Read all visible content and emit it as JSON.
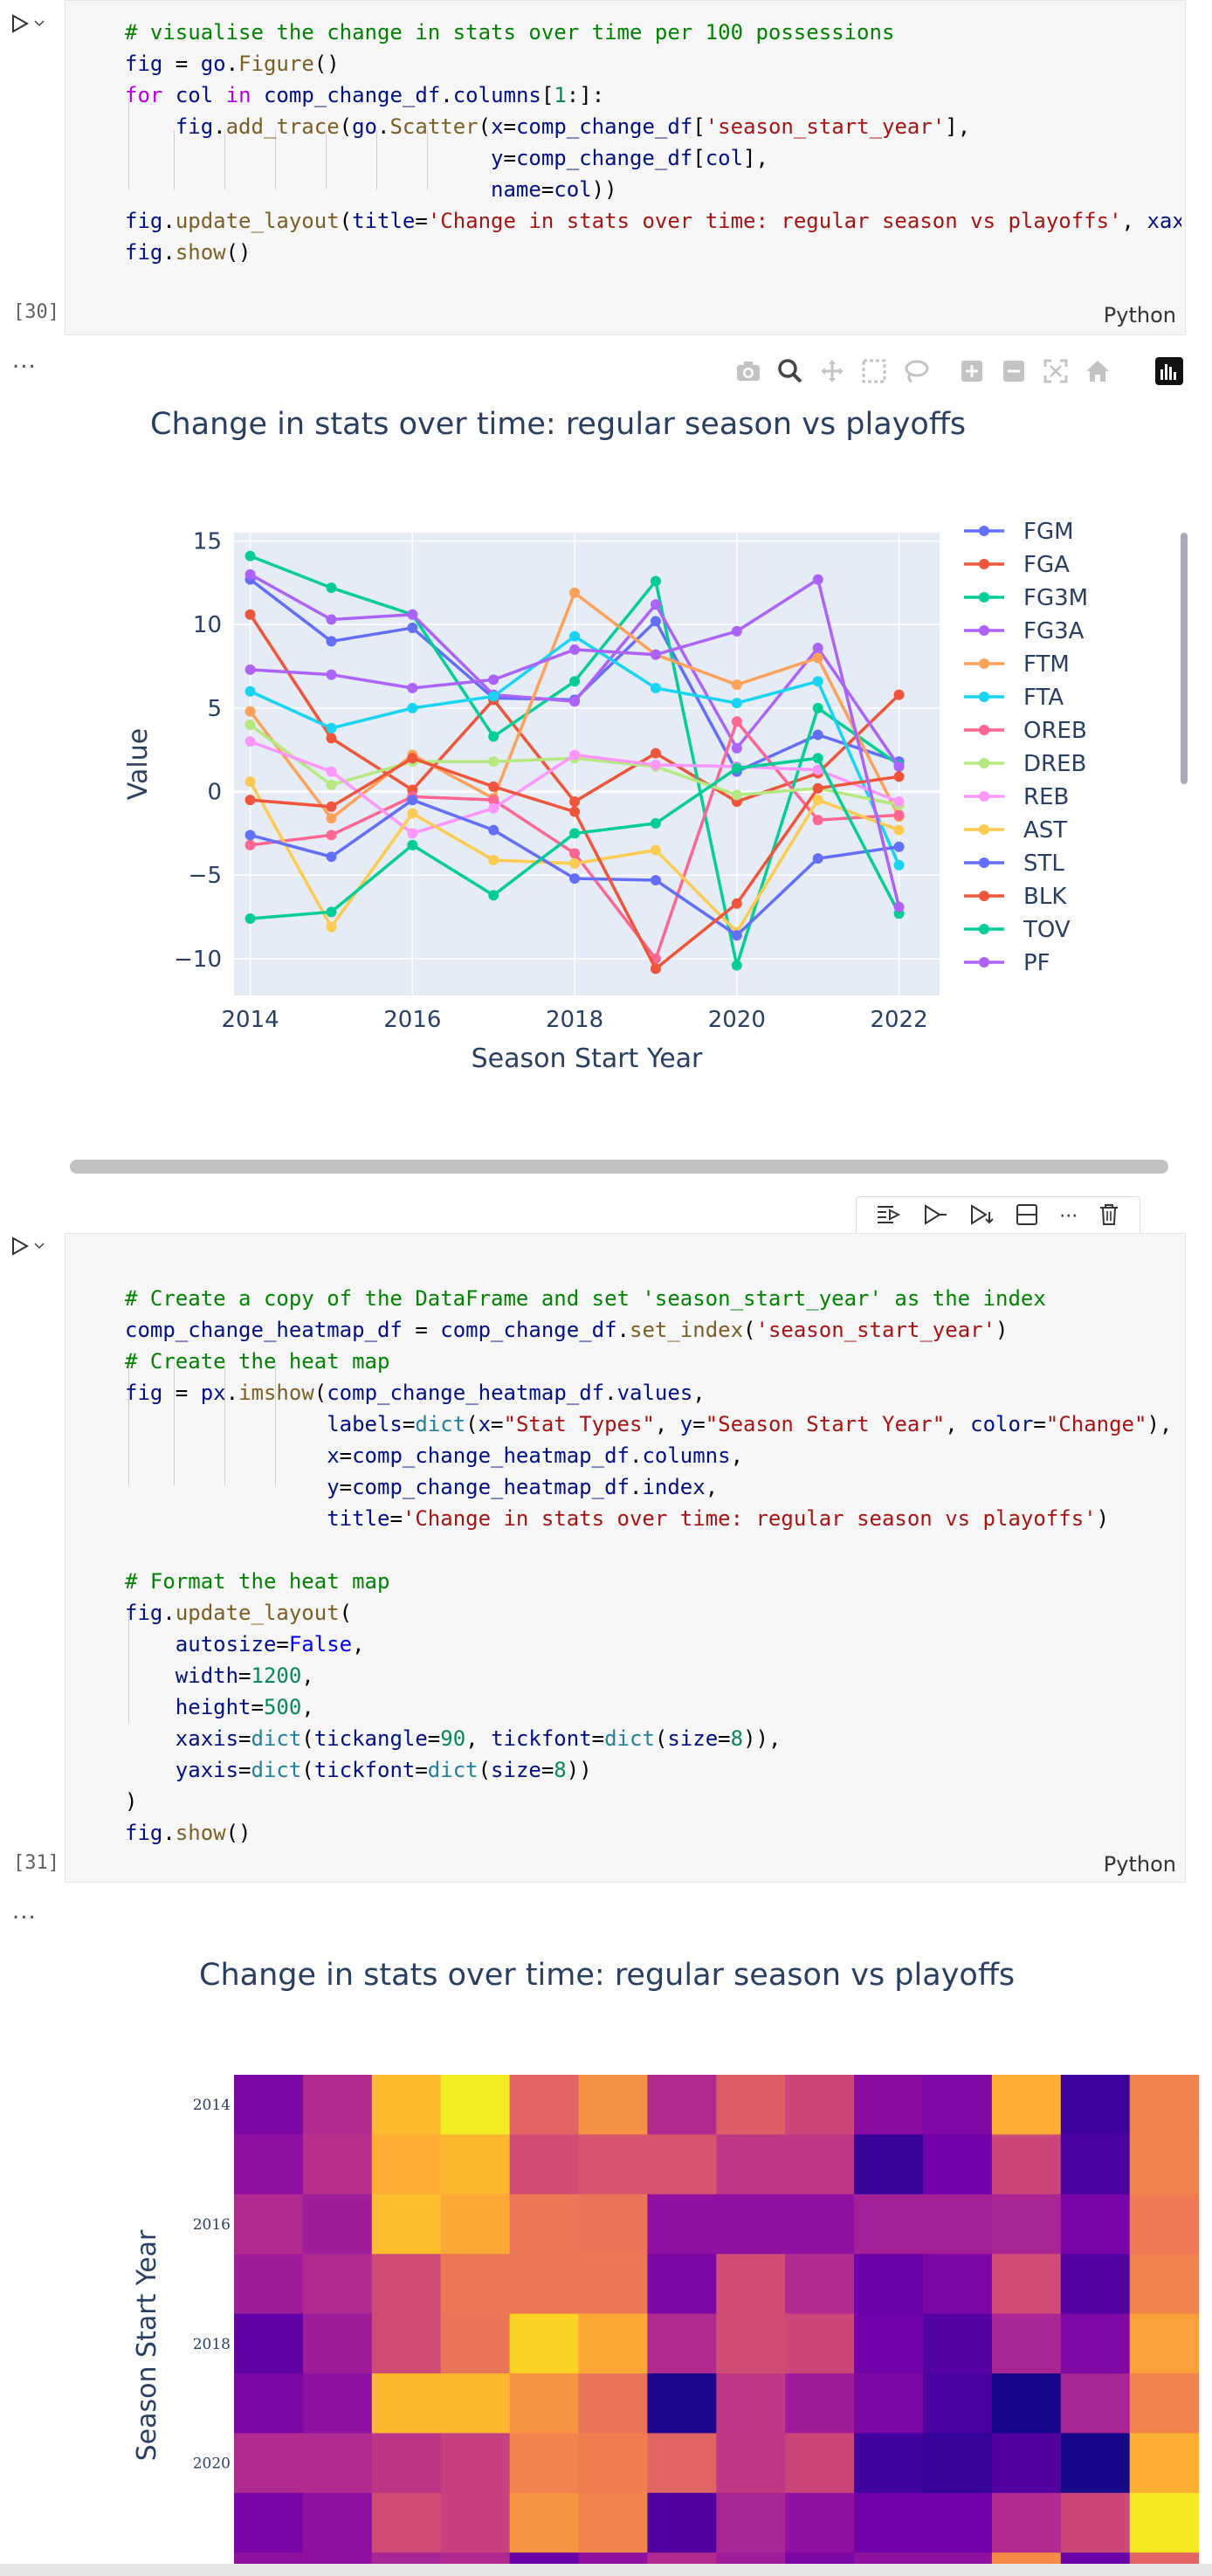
{
  "cell1": {
    "exec_count": "[30]",
    "language": "Python",
    "code_lines": [
      "# visualise the change in stats over time per 100 possessions",
      "fig = go.Figure()",
      "for col in comp_change_df.columns[1:]:",
      "    fig.add_trace(go.Scatter(x=comp_change_df['season_start_year'],",
      "                             y=comp_change_df[col],",
      "                             name=col))",
      "fig.update_layout(title='Change in stats over time: regular season vs playoffs', xaxis_",
      "fig.show()"
    ]
  },
  "output1": {
    "ellipsis": "...",
    "modebar_icons": [
      "camera-icon",
      "zoom-icon",
      "pan-icon",
      "box-select-icon",
      "lasso-icon",
      "zoom-in-icon",
      "zoom-out-icon",
      "autoscale-icon",
      "reset-axes-icon",
      "plotly-logo-icon"
    ]
  },
  "chart_data": {
    "type": "line",
    "title": "Change in stats over time: regular season vs playoffs",
    "xlabel": "Season Start Year",
    "ylabel": "Value",
    "x": [
      2014,
      2015,
      2016,
      2017,
      2018,
      2019,
      2020,
      2021,
      2022
    ],
    "xticks": [
      "2014",
      "2016",
      "2018",
      "2020",
      "2022"
    ],
    "yticks": [
      "−10",
      "−5",
      "0",
      "5",
      "10",
      "15"
    ],
    "xlim": [
      2013.8,
      2022.5
    ],
    "ylim": [
      -12.2,
      15.5
    ],
    "grid": true,
    "legend_position": "right",
    "series": [
      {
        "name": "FGM",
        "color": "#636efa",
        "values": [
          12.7,
          9.0,
          9.8,
          5.6,
          5.5,
          10.2,
          1.2,
          3.4,
          1.8
        ]
      },
      {
        "name": "FGA",
        "color": "#ef553b",
        "values": [
          10.6,
          3.2,
          0.1,
          5.5,
          -0.6,
          2.3,
          -0.6,
          1.1,
          5.8
        ]
      },
      {
        "name": "FG3M",
        "color": "#00cc96",
        "values": [
          14.1,
          12.2,
          10.6,
          3.3,
          6.6,
          12.6,
          -10.4,
          5.0,
          1.6
        ]
      },
      {
        "name": "FG3A",
        "color": "#ab63fa",
        "values": [
          13.0,
          10.3,
          10.6,
          5.8,
          5.4,
          11.2,
          2.6,
          8.6,
          1.5
        ]
      },
      {
        "name": "FTM",
        "color": "#ffa15a",
        "values": [
          4.8,
          -1.6,
          2.2,
          -0.4,
          11.9,
          8.2,
          6.4,
          8.0,
          -1.5
        ]
      },
      {
        "name": "FTA",
        "color": "#19d3f3",
        "values": [
          6.0,
          3.8,
          5.0,
          5.7,
          9.3,
          6.2,
          5.3,
          6.6,
          -4.4
        ]
      },
      {
        "name": "OREB",
        "color": "#ff6692",
        "values": [
          -3.2,
          -2.6,
          -0.3,
          -0.5,
          -3.7,
          -10.0,
          4.2,
          -1.7,
          -1.4
        ]
      },
      {
        "name": "DREB",
        "color": "#b6e880",
        "values": [
          4.0,
          0.4,
          1.8,
          1.8,
          2.0,
          1.5,
          -0.2,
          0.2,
          -0.8
        ]
      },
      {
        "name": "REB",
        "color": "#ff97ff",
        "values": [
          3.0,
          1.2,
          -2.5,
          -1.0,
          2.2,
          1.6,
          1.5,
          1.3,
          -0.6
        ]
      },
      {
        "name": "AST",
        "color": "#fecb52",
        "values": [
          0.6,
          -8.1,
          -1.3,
          -4.1,
          -4.3,
          -3.5,
          -8.4,
          -0.5,
          -2.3
        ]
      },
      {
        "name": "STL",
        "color": "#636efa",
        "values": [
          -2.6,
          -3.9,
          -0.5,
          -2.3,
          -5.2,
          -5.3,
          -8.6,
          -4.0,
          -3.3
        ]
      },
      {
        "name": "BLK",
        "color": "#ef553b",
        "values": [
          -0.5,
          -0.9,
          2.0,
          0.3,
          -1.2,
          -10.6,
          -6.7,
          0.2,
          0.9
        ]
      },
      {
        "name": "TOV",
        "color": "#00cc96",
        "values": [
          -7.6,
          -7.2,
          -3.2,
          -6.2,
          -2.5,
          -1.9,
          1.4,
          2.0,
          -7.3
        ]
      },
      {
        "name": "PF",
        "color": "#ab63fa",
        "values": [
          7.3,
          7.0,
          6.2,
          6.7,
          8.5,
          8.2,
          9.6,
          12.7,
          -6.9
        ]
      }
    ]
  },
  "cell2": {
    "exec_count": "[31]",
    "language": "Python",
    "toolbar_icons": [
      "run-above-icon",
      "run-cell-icon",
      "run-below-icon",
      "split-cell-icon",
      "more-icon",
      "delete-icon"
    ],
    "more_label": "···"
  },
  "output2": {
    "ellipsis": "...",
    "heatmap": {
      "title": "Change in stats over time: regular season vs playoffs",
      "ylabel": "Season Start Year",
      "yticks": [
        "2014",
        "2016",
        "2018",
        "2020"
      ],
      "rows": [
        [
          0.25,
          0.4,
          0.85,
          0.97,
          0.6,
          0.74,
          0.4,
          0.58,
          0.5,
          0.28,
          0.26,
          0.82,
          0.1,
          0.7
        ],
        [
          0.3,
          0.42,
          0.82,
          0.84,
          0.52,
          0.55,
          0.55,
          0.45,
          0.45,
          0.08,
          0.22,
          0.5,
          0.12,
          0.7
        ],
        [
          0.4,
          0.35,
          0.86,
          0.8,
          0.66,
          0.65,
          0.3,
          0.3,
          0.3,
          0.36,
          0.36,
          0.38,
          0.24,
          0.67
        ],
        [
          0.35,
          0.4,
          0.52,
          0.66,
          0.66,
          0.66,
          0.25,
          0.52,
          0.4,
          0.2,
          0.25,
          0.52,
          0.15,
          0.7
        ],
        [
          0.18,
          0.35,
          0.52,
          0.65,
          0.91,
          0.8,
          0.4,
          0.52,
          0.5,
          0.22,
          0.15,
          0.38,
          0.26,
          0.78
        ],
        [
          0.25,
          0.3,
          0.84,
          0.84,
          0.75,
          0.65,
          0.03,
          0.45,
          0.35,
          0.25,
          0.12,
          0.02,
          0.38,
          0.7
        ],
        [
          0.4,
          0.4,
          0.44,
          0.48,
          0.7,
          0.68,
          0.6,
          0.45,
          0.5,
          0.1,
          0.08,
          0.14,
          0.02,
          0.82
        ],
        [
          0.24,
          0.3,
          0.52,
          0.48,
          0.75,
          0.7,
          0.14,
          0.38,
          0.3,
          0.22,
          0.22,
          0.4,
          0.5,
          0.96
        ],
        [
          0.3,
          0.3,
          0.38,
          0.4,
          0.2,
          0.3,
          0.4,
          0.35,
          0.25,
          0.3,
          0.3,
          0.72,
          0.2,
          0.6
        ]
      ]
    }
  }
}
